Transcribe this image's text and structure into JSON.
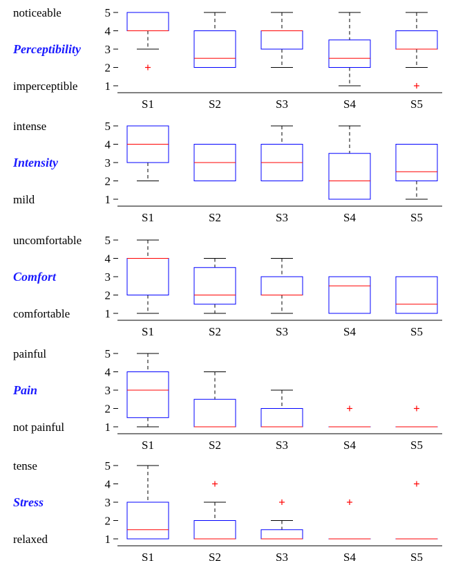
{
  "colors": {
    "box": "#0000ff",
    "median": "#ff0000",
    "outlier": "#ff0000",
    "whisker": "#000000",
    "title": "#1a1aff",
    "axis": "#000000"
  },
  "chart_data": [
    {
      "type": "box",
      "title": "Perceptibility",
      "low_label": "imperceptible",
      "high_label": "noticeable",
      "categories": [
        "S1",
        "S2",
        "S3",
        "S4",
        "S5"
      ],
      "ylim": [
        1,
        5
      ],
      "yticks": [
        1,
        2,
        3,
        4,
        5
      ],
      "boxes": [
        {
          "min": 3,
          "q1": 4,
          "median": 4,
          "q3": 5,
          "max": 5,
          "outliers": [
            2
          ]
        },
        {
          "min": 2,
          "q1": 2,
          "median": 2.5,
          "q3": 4,
          "max": 5,
          "outliers": []
        },
        {
          "min": 2,
          "q1": 3,
          "median": 4,
          "q3": 4,
          "max": 5,
          "outliers": []
        },
        {
          "min": 1,
          "q1": 2,
          "median": 2.5,
          "q3": 3.5,
          "max": 5,
          "outliers": []
        },
        {
          "min": 2,
          "q1": 3,
          "median": 3,
          "q3": 4,
          "max": 5,
          "outliers": [
            1
          ]
        }
      ]
    },
    {
      "type": "box",
      "title": "Intensity",
      "low_label": "mild",
      "high_label": "intense",
      "categories": [
        "S1",
        "S2",
        "S3",
        "S4",
        "S5"
      ],
      "ylim": [
        1,
        5
      ],
      "yticks": [
        1,
        2,
        3,
        4,
        5
      ],
      "boxes": [
        {
          "min": 2,
          "q1": 3,
          "median": 4,
          "q3": 5,
          "max": 5,
          "outliers": []
        },
        {
          "min": 2,
          "q1": 2,
          "median": 3,
          "q3": 4,
          "max": 4,
          "outliers": []
        },
        {
          "min": 2,
          "q1": 2,
          "median": 3,
          "q3": 4,
          "max": 5,
          "outliers": []
        },
        {
          "min": 1,
          "q1": 1,
          "median": 2,
          "q3": 3.5,
          "max": 5,
          "outliers": []
        },
        {
          "min": 1,
          "q1": 2,
          "median": 2.5,
          "q3": 4,
          "max": 4,
          "outliers": []
        }
      ]
    },
    {
      "type": "box",
      "title": "Comfort",
      "low_label": "comfortable",
      "high_label": "uncomfortable",
      "categories": [
        "S1",
        "S2",
        "S3",
        "S4",
        "S5"
      ],
      "ylim": [
        1,
        5
      ],
      "yticks": [
        1,
        2,
        3,
        4,
        5
      ],
      "boxes": [
        {
          "min": 1,
          "q1": 2,
          "median": 4,
          "q3": 4,
          "max": 5,
          "outliers": []
        },
        {
          "min": 1,
          "q1": 1.5,
          "median": 2,
          "q3": 3.5,
          "max": 4,
          "outliers": []
        },
        {
          "min": 1,
          "q1": 2,
          "median": 2,
          "q3": 3,
          "max": 4,
          "outliers": []
        },
        {
          "min": 1,
          "q1": 1,
          "median": 2.5,
          "q3": 3,
          "max": 3,
          "outliers": []
        },
        {
          "min": 1,
          "q1": 1,
          "median": 1.5,
          "q3": 3,
          "max": 3,
          "outliers": []
        }
      ]
    },
    {
      "type": "box",
      "title": "Pain",
      "low_label": "not painful",
      "high_label": "painful",
      "categories": [
        "S1",
        "S2",
        "S3",
        "S4",
        "S5"
      ],
      "ylim": [
        1,
        5
      ],
      "yticks": [
        1,
        2,
        3,
        4,
        5
      ],
      "boxes": [
        {
          "min": 1,
          "q1": 1.5,
          "median": 3,
          "q3": 4,
          "max": 5,
          "outliers": []
        },
        {
          "min": 1,
          "q1": 1,
          "median": 1,
          "q3": 2.5,
          "max": 4,
          "outliers": []
        },
        {
          "min": 1,
          "q1": 1,
          "median": 1,
          "q3": 2,
          "max": 3,
          "outliers": []
        },
        {
          "min": 1,
          "q1": 1,
          "median": 1,
          "q3": 1,
          "max": 1,
          "outliers": [
            2
          ]
        },
        {
          "min": 1,
          "q1": 1,
          "median": 1,
          "q3": 1,
          "max": 1,
          "outliers": [
            2
          ]
        }
      ]
    },
    {
      "type": "box",
      "title": "Stress",
      "low_label": "relaxed",
      "high_label": "tense",
      "categories": [
        "S1",
        "S2",
        "S3",
        "S4",
        "S5"
      ],
      "ylim": [
        1,
        5
      ],
      "yticks": [
        1,
        2,
        3,
        4,
        5
      ],
      "boxes": [
        {
          "min": 1,
          "q1": 1,
          "median": 1.5,
          "q3": 3,
          "max": 5,
          "outliers": []
        },
        {
          "min": 1,
          "q1": 1,
          "median": 1,
          "q3": 2,
          "max": 3,
          "outliers": [
            4
          ]
        },
        {
          "min": 1,
          "q1": 1,
          "median": 1,
          "q3": 1.5,
          "max": 2,
          "outliers": [
            3
          ]
        },
        {
          "min": 1,
          "q1": 1,
          "median": 1,
          "q3": 1,
          "max": 1,
          "outliers": [
            3
          ]
        },
        {
          "min": 1,
          "q1": 1,
          "median": 1,
          "q3": 1,
          "max": 1,
          "outliers": [
            4
          ]
        }
      ]
    }
  ]
}
